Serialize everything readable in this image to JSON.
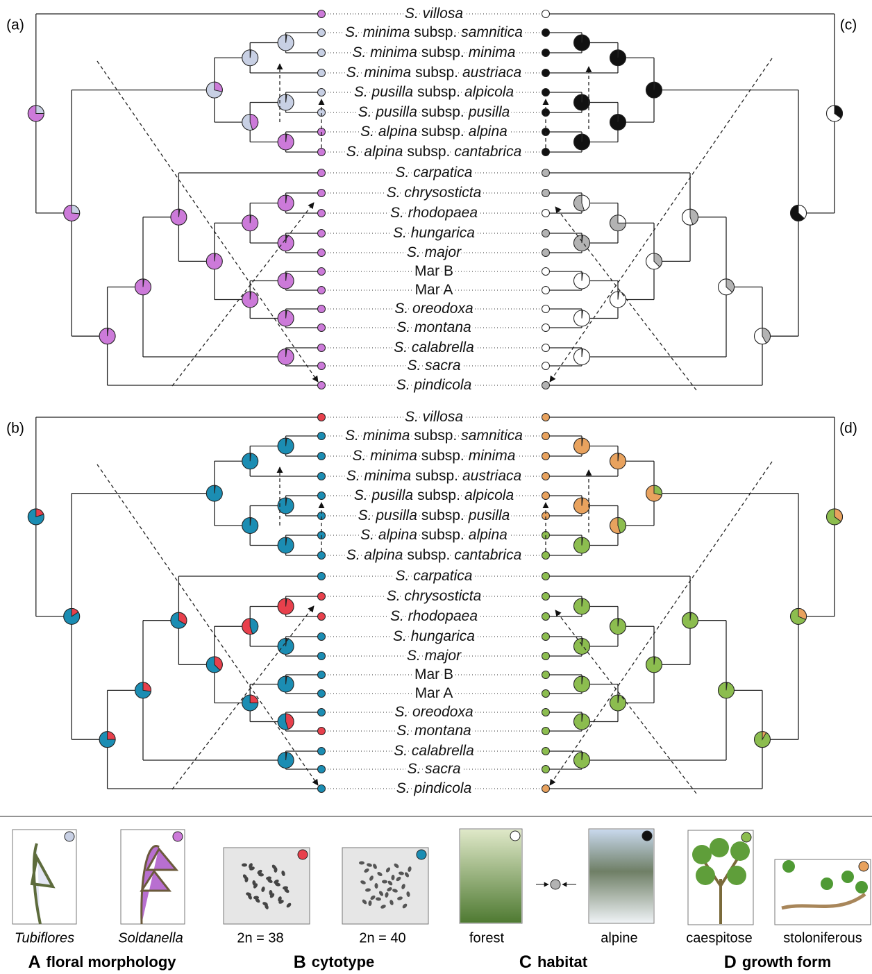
{
  "taxa": [
    {
      "species": "S. villosa"
    },
    {
      "species": "S. minima",
      "rank": "subsp.",
      "infra": "samnitica"
    },
    {
      "species": "S. minima",
      "rank": "subsp.",
      "infra": "minima"
    },
    {
      "species": "S. minima",
      "rank": "subsp.",
      "infra": "austriaca"
    },
    {
      "species": "S. pusilla",
      "rank": "subsp.",
      "infra": "alpicola"
    },
    {
      "species": "S. pusilla",
      "rank": "subsp.",
      "infra": "pusilla"
    },
    {
      "species": "S. alpina",
      "rank": "subsp.",
      "infra": "alpina"
    },
    {
      "species": "S. alpina",
      "rank": "subsp.",
      "infra": "cantabrica"
    },
    {
      "species": "S. carpatica"
    },
    {
      "species": "S. chrysosticta"
    },
    {
      "species": "S. rhodopaea"
    },
    {
      "species": "S. hungarica"
    },
    {
      "species": "S. major"
    },
    {
      "code": "Mar B"
    },
    {
      "code": "Mar A"
    },
    {
      "species": "S. oreodoxa"
    },
    {
      "species": "S. montana"
    },
    {
      "species": "S. calabrella"
    },
    {
      "species": "S. sacra"
    },
    {
      "species": "S. pindicola"
    }
  ],
  "panels": [
    {
      "label": "(a)",
      "tip_colors": [
        "#cc7ad9",
        "#c8d0e4",
        "#c8d0e4",
        "#c8d0e4",
        "#c8d0e4",
        "#c8d0e4",
        "#cc7ad9",
        "#cc7ad9",
        "#cc7ad9",
        "#cc7ad9",
        "#cc7ad9",
        "#cc7ad9",
        "#cc7ad9",
        "#cc7ad9",
        "#cc7ad9",
        "#cc7ad9",
        "#cc7ad9",
        "#cc7ad9",
        "#cc7ad9",
        "#cc7ad9"
      ]
    },
    {
      "label": "(b)",
      "tip_colors": [
        "#e8404c",
        "#1b8db3",
        "#1b8db3",
        "#1b8db3",
        "#1b8db3",
        "#1b8db3",
        "#1b8db3",
        "#1b8db3",
        "#1b8db3",
        "#e8404c",
        "#e8404c",
        "#1b8db3",
        "#1b8db3",
        "#1b8db3",
        "#1b8db3",
        "#1b8db3",
        "#e8404c",
        "#1b8db3",
        "#1b8db3",
        "#1b8db3"
      ]
    },
    {
      "label": "(c)",
      "tip_colors": [
        "#ffffff",
        "#111111",
        "#111111",
        "#111111",
        "#111111",
        "#111111",
        "#111111",
        "#111111",
        "#b3b3b3",
        "#b3b3b3",
        "#ffffff",
        "#b3b3b3",
        "#b3b3b3",
        "#ffffff",
        "#ffffff",
        "#ffffff",
        "#ffffff",
        "#ffffff",
        "#ffffff",
        "#b3b3b3"
      ]
    },
    {
      "label": "(d)",
      "tip_colors": [
        "#e8a25e",
        "#e8a25e",
        "#e8a25e",
        "#e8a25e",
        "#e8a25e",
        "#e8a25e",
        "#8cbd4f",
        "#8cbd4f",
        "#8cbd4f",
        "#8cbd4f",
        "#8cbd4f",
        "#8cbd4f",
        "#8cbd4f",
        "#8cbd4f",
        "#8cbd4f",
        "#8cbd4f",
        "#8cbd4f",
        "#8cbd4f",
        "#8cbd4f",
        "#e8a25e"
      ]
    }
  ],
  "legend": {
    "groups": [
      {
        "letter": "A",
        "title": "floral morphology",
        "states": [
          {
            "label": "Tubiflores",
            "color": "#c8d0e4"
          },
          {
            "label": "Soldanella",
            "color": "#cc7ad9"
          }
        ]
      },
      {
        "letter": "B",
        "title": "cytotype",
        "states": [
          {
            "label": "2n = 38",
            "color": "#e8404c"
          },
          {
            "label": "2n = 40",
            "color": "#1b8db3"
          }
        ]
      },
      {
        "letter": "C",
        "title": "habitat",
        "intermediate_color": "#b3b3b3",
        "states": [
          {
            "label": "forest",
            "color": "#ffffff"
          },
          {
            "label": "alpine",
            "color": "#111111"
          }
        ]
      },
      {
        "letter": "D",
        "title": "growth form",
        "states": [
          {
            "label": "caespitose",
            "color": "#8cbd4f"
          },
          {
            "label": "stoloniferous",
            "color": "#e8a25e"
          }
        ]
      }
    ]
  }
}
